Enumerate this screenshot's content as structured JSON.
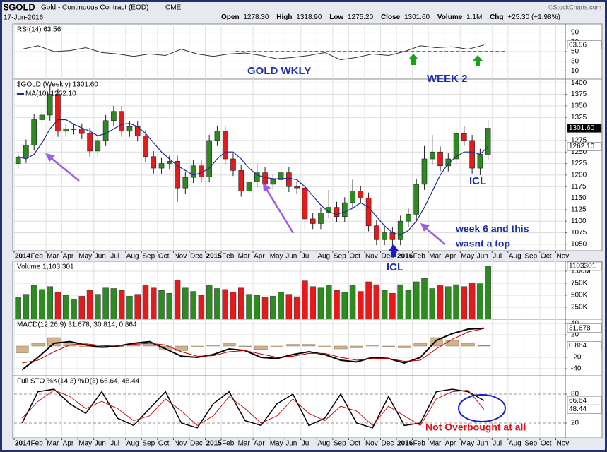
{
  "header": {
    "symbol": "$GOLD",
    "name": "Gold - Continuous Contract (EOD)",
    "exchange": "CME",
    "date": "17-Jun-2016",
    "watermark": "©StockCharts.com",
    "quote": [
      {
        "label": "Open",
        "value": "1278.30"
      },
      {
        "label": "High",
        "value": "1318.90"
      },
      {
        "label": "Low",
        "value": "1275.20"
      },
      {
        "label": "Close",
        "value": "1301.60"
      },
      {
        "label": "Volume",
        "value": "1.1M"
      },
      {
        "label": "Chg",
        "value": "+25.30 (+1.98%)"
      }
    ]
  },
  "annotations": [
    "GOLD WKLY",
    "WEEK 2",
    "ICL",
    "ICL",
    "week 6 and this",
    "wasnt a top",
    "Not Overbought at all"
  ],
  "chart_data": [
    {
      "type": "line",
      "title": "RSI(14) 63.56",
      "xlim": [
        0,
        34.6
      ],
      "ylim": [
        -7.1,
        107.1
      ],
      "yticks": [
        10,
        30,
        50,
        70,
        90
      ],
      "grid": true,
      "x": [
        0.5,
        1.5,
        2.5,
        3.5,
        4.5,
        5.5,
        6.5,
        7.5,
        8.5,
        9.5,
        10.5,
        11.5,
        12.5,
        13.5,
        14.5,
        15.5,
        16.5,
        17.5,
        18.5,
        19.5,
        20.5,
        21.5,
        22.5,
        23.5,
        24.5,
        25.5,
        26.5,
        27.5,
        28.5,
        29.5
      ],
      "series": [
        {
          "color": "#333333",
          "values": [
            55,
            62,
            50,
            52,
            58,
            48,
            45,
            40,
            45,
            42,
            55,
            45,
            40,
            45,
            47,
            42,
            35,
            38,
            42,
            48,
            33,
            38,
            45,
            42,
            50,
            62,
            58,
            60,
            55,
            63.56
          ],
          "last_label": "63.56"
        }
      ],
      "reference": {
        "value": 50,
        "from": 13.9,
        "to": 30.8,
        "color": "#e020e0"
      }
    },
    {
      "type": "candlestick",
      "title": "$GOLD (Weekly) 1301.60",
      "xlim": [
        0,
        34.6
      ],
      "ylim": [
        1036,
        1408
      ],
      "yticks": [
        1050,
        1075,
        1100,
        1125,
        1150,
        1175,
        1200,
        1225,
        1250,
        1275,
        1300,
        1325,
        1350,
        1375,
        1400
      ],
      "grid": true,
      "up_color": "#2e8b22",
      "down_color": "#e8191b",
      "last_label": "1301.60",
      "xticks": [
        {
          "value": 0,
          "label": "2014"
        },
        {
          "value": 1,
          "label": "Feb"
        },
        {
          "value": 2,
          "label": "Mar"
        },
        {
          "value": 3,
          "label": "Apr"
        },
        {
          "value": 4,
          "label": "May"
        },
        {
          "value": 5,
          "label": "Jun"
        },
        {
          "value": 6,
          "label": "Jul"
        },
        {
          "value": 7,
          "label": "Aug"
        },
        {
          "value": 8,
          "label": "Sep"
        },
        {
          "value": 9,
          "label": "Oct"
        },
        {
          "value": 10,
          "label": "Nov"
        },
        {
          "value": 11,
          "label": "Dec"
        },
        {
          "value": 12,
          "label": "2015"
        },
        {
          "value": 13,
          "label": "Feb"
        },
        {
          "value": 14,
          "label": "Mar"
        },
        {
          "value": 15,
          "label": "Apr"
        },
        {
          "value": 16,
          "label": "May"
        },
        {
          "value": 17,
          "label": "Jun"
        },
        {
          "value": 18,
          "label": "Jul"
        },
        {
          "value": 19,
          "label": "Aug"
        },
        {
          "value": 20,
          "label": "Sep"
        },
        {
          "value": 21,
          "label": "Oct"
        },
        {
          "value": 22,
          "label": "Nov"
        },
        {
          "value": 23,
          "label": "Dec"
        },
        {
          "value": 24,
          "label": "2016"
        },
        {
          "value": 25,
          "label": "Feb"
        },
        {
          "value": 26,
          "label": "Mar"
        },
        {
          "value": 27,
          "label": "Apr"
        },
        {
          "value": 28,
          "label": "May"
        },
        {
          "value": 29,
          "label": "Jun"
        },
        {
          "value": 30,
          "label": "Jul"
        },
        {
          "value": 31,
          "label": "Aug"
        },
        {
          "value": 32,
          "label": "Sep"
        },
        {
          "value": 33,
          "label": "Oct"
        },
        {
          "value": 34,
          "label": "Nov"
        }
      ],
      "x": [
        0.25,
        0.75,
        1.25,
        1.75,
        2.25,
        2.75,
        3.25,
        3.75,
        4.25,
        4.75,
        5.25,
        5.75,
        6.25,
        6.75,
        7.25,
        7.75,
        8.25,
        8.75,
        9.25,
        9.75,
        10.25,
        10.75,
        11.25,
        11.75,
        12.25,
        12.75,
        13.25,
        13.75,
        14.25,
        14.75,
        15.25,
        15.75,
        16.25,
        16.75,
        17.25,
        17.75,
        18.25,
        18.75,
        19.25,
        19.75,
        20.25,
        20.75,
        21.25,
        21.75,
        22.25,
        22.75,
        23.25,
        23.75,
        24.25,
        24.75,
        25.25,
        25.75,
        26.25,
        26.75,
        27.25,
        27.75,
        28.25,
        28.75,
        29.25,
        29.75
      ],
      "open": [
        1225,
        1238,
        1265,
        1320,
        1330,
        1375,
        1295,
        1300,
        1300,
        1290,
        1252,
        1275,
        1318,
        1338,
        1295,
        1305,
        1285,
        1240,
        1215,
        1225,
        1230,
        1172,
        1195,
        1220,
        1196,
        1275,
        1295,
        1235,
        1210,
        1165,
        1185,
        1205,
        1180,
        1190,
        1205,
        1175,
        1172,
        1105,
        1095,
        1118,
        1130,
        1110,
        1140,
        1165,
        1150,
        1090,
        1060,
        1075,
        1060,
        1100,
        1115,
        1180,
        1235,
        1250,
        1220,
        1235,
        1290,
        1275,
        1215,
        1245
      ],
      "high": [
        1250,
        1277,
        1332,
        1342,
        1392,
        1387,
        1312,
        1312,
        1312,
        1302,
        1287,
        1330,
        1350,
        1350,
        1317,
        1317,
        1297,
        1252,
        1237,
        1242,
        1242,
        1207,
        1232,
        1232,
        1287,
        1307,
        1307,
        1247,
        1222,
        1197,
        1224,
        1217,
        1202,
        1217,
        1217,
        1187,
        1184,
        1117,
        1130,
        1168,
        1142,
        1152,
        1190,
        1177,
        1162,
        1102,
        1087,
        1087,
        1112,
        1127,
        1192,
        1263,
        1287,
        1262,
        1247,
        1302,
        1306,
        1287,
        1257,
        1318.9
      ],
      "low": [
        1213,
        1226,
        1253,
        1308,
        1318,
        1283,
        1283,
        1288,
        1278,
        1240,
        1240,
        1263,
        1306,
        1283,
        1283,
        1273,
        1228,
        1203,
        1203,
        1213,
        1142,
        1160,
        1183,
        1184,
        1184,
        1263,
        1223,
        1198,
        1153,
        1153,
        1173,
        1168,
        1168,
        1178,
        1163,
        1160,
        1080,
        1083,
        1083,
        1106,
        1098,
        1098,
        1128,
        1138,
        1078,
        1048,
        1048,
        1046,
        1048,
        1088,
        1103,
        1168,
        1223,
        1208,
        1208,
        1223,
        1263,
        1203,
        1200,
        1233
      ],
      "close": [
        1238,
        1265,
        1320,
        1330,
        1375,
        1295,
        1300,
        1300,
        1290,
        1252,
        1275,
        1318,
        1338,
        1295,
        1305,
        1285,
        1240,
        1215,
        1225,
        1230,
        1172,
        1195,
        1220,
        1196,
        1275,
        1295,
        1235,
        1210,
        1165,
        1185,
        1205,
        1180,
        1190,
        1205,
        1175,
        1172,
        1105,
        1095,
        1118,
        1130,
        1110,
        1140,
        1165,
        1150,
        1090,
        1060,
        1075,
        1060,
        1100,
        1115,
        1180,
        1235,
        1250,
        1220,
        1235,
        1290,
        1275,
        1215,
        1245,
        1301.6
      ],
      "ma": {
        "label": "MA(10) 1262.10",
        "color": "#1a2a8a",
        "last_label": "1262.10",
        "values": [
          1240,
          1235,
          1245,
          1270,
          1300,
          1320,
          1320,
          1310,
          1302,
          1295,
          1285,
          1290,
          1300,
          1310,
          1312,
          1305,
          1290,
          1270,
          1250,
          1235,
          1220,
          1210,
          1200,
          1205,
          1215,
          1235,
          1250,
          1250,
          1235,
          1215,
          1200,
          1195,
          1192,
          1192,
          1193,
          1190,
          1175,
          1155,
          1135,
          1120,
          1115,
          1120,
          1128,
          1140,
          1130,
          1110,
          1090,
          1075,
          1070,
          1080,
          1100,
          1130,
          1165,
          1200,
          1225,
          1240,
          1250,
          1250,
          1245,
          1262.1
        ]
      }
    },
    {
      "type": "bar",
      "title": "Volume 1,103,301",
      "xlim": [
        0,
        34.6
      ],
      "ylim": [
        0,
        1206000
      ],
      "grid": true,
      "last_label": "1103301",
      "yticks": [
        {
          "value": 250000,
          "label": "250K"
        },
        {
          "value": 500000,
          "label": "500K"
        },
        {
          "value": 750000,
          "label": "750K"
        },
        {
          "value": 1000000,
          "label": "1.00M"
        }
      ],
      "values": [
        450000,
        520000,
        700000,
        620000,
        680000,
        560000,
        500000,
        420000,
        480000,
        600000,
        520000,
        650000,
        640000,
        600000,
        480000,
        520000,
        700000,
        650000,
        600000,
        540000,
        820000,
        650000,
        580000,
        500000,
        700000,
        640000,
        620000,
        560000,
        650000,
        520000,
        500000,
        460000,
        480000,
        560000,
        520000,
        470000,
        800000,
        680000,
        650000,
        700000,
        600000,
        560000,
        700000,
        580000,
        780000,
        720000,
        600000,
        540000,
        720000,
        600000,
        780000,
        850000,
        640000,
        700000,
        680000,
        720000,
        680000,
        760000,
        740000,
        1103301
      ]
    },
    {
      "type": "line",
      "title": "MACD(12,26,9) 31.678, 30.814, 0.864",
      "xlim": [
        0,
        34.6
      ],
      "ylim": [
        -52.5,
        47.5
      ],
      "yticks": [
        -40,
        -20,
        20,
        40
      ],
      "grid": true,
      "x": [
        0.5,
        1.5,
        2.5,
        3.5,
        4.5,
        5.5,
        6.5,
        7.5,
        8.5,
        9.5,
        10.5,
        11.5,
        12.5,
        13.5,
        14.5,
        15.5,
        16.5,
        17.5,
        18.5,
        19.5,
        20.5,
        21.5,
        22.5,
        23.5,
        24.5,
        25.5,
        26.5,
        27.5,
        28.5,
        29.5
      ],
      "series": [
        {
          "kind": "histogram",
          "color": "#d2b48c",
          "values": [
            -12,
            5,
            15,
            6,
            -2,
            -3,
            0,
            2,
            3,
            -7,
            -8,
            -2,
            2,
            5,
            0,
            -6,
            -2,
            3,
            3,
            -2,
            -5,
            -3,
            2,
            0,
            -3,
            5,
            15,
            10,
            5,
            0.864
          ],
          "last_label": "0.864"
        },
        {
          "kind": "line",
          "color": "#000000",
          "width": 2,
          "values": [
            -42,
            -20,
            5,
            8,
            2,
            -2,
            0,
            5,
            8,
            -5,
            -18,
            -20,
            -15,
            -5,
            -8,
            -20,
            -22,
            -15,
            -10,
            -15,
            -25,
            -28,
            -20,
            -22,
            -30,
            -20,
            10,
            22,
            30,
            31.678
          ],
          "last_label": "31.678"
        },
        {
          "kind": "line",
          "color": "#c00000",
          "width": 1,
          "values": [
            -30,
            -25,
            -10,
            2,
            4,
            1,
            0,
            3,
            5,
            2,
            -10,
            -18,
            -17,
            -10,
            -8,
            -14,
            -20,
            -18,
            -13,
            -13,
            -20,
            -25,
            -22,
            -22,
            -27,
            -25,
            -5,
            12,
            25,
            30.814
          ]
        }
      ]
    },
    {
      "type": "line",
      "title": "Full STO %K(14,3) %D(3) 66.64, 48.44",
      "xlim": [
        0,
        34.6
      ],
      "ylim": [
        -10.7,
        118
      ],
      "yticks": [
        20,
        80
      ],
      "grid": true,
      "xticks": [
        {
          "value": 0,
          "label": "2014"
        },
        {
          "value": 1,
          "label": "Feb"
        },
        {
          "value": 2,
          "label": "Mar"
        },
        {
          "value": 3,
          "label": "Apr"
        },
        {
          "value": 4,
          "label": "May"
        },
        {
          "value": 5,
          "label": "Jun"
        },
        {
          "value": 6,
          "label": "Jul"
        },
        {
          "value": 7,
          "label": "Aug"
        },
        {
          "value": 8,
          "label": "Sep"
        },
        {
          "value": 9,
          "label": "Oct"
        },
        {
          "value": 10,
          "label": "Nov"
        },
        {
          "value": 11,
          "label": "Dec"
        },
        {
          "value": 12,
          "label": "2015"
        },
        {
          "value": 13,
          "label": "Feb"
        },
        {
          "value": 14,
          "label": "Mar"
        },
        {
          "value": 15,
          "label": "Apr"
        },
        {
          "value": 16,
          "label": "May"
        },
        {
          "value": 17,
          "label": "Jun"
        },
        {
          "value": 18,
          "label": "Jul"
        },
        {
          "value": 19,
          "label": "Aug"
        },
        {
          "value": 20,
          "label": "Sep"
        },
        {
          "value": 21,
          "label": "Oct"
        },
        {
          "value": 22,
          "label": "Nov"
        },
        {
          "value": 23,
          "label": "Dec"
        },
        {
          "value": 24,
          "label": "2016"
        },
        {
          "value": 25,
          "label": "Feb"
        },
        {
          "value": 26,
          "label": "Mar"
        },
        {
          "value": 27,
          "label": "Apr"
        },
        {
          "value": 28,
          "label": "May"
        },
        {
          "value": 29,
          "label": "Jun"
        },
        {
          "value": 30,
          "label": "Jul"
        },
        {
          "value": 31,
          "label": "Aug"
        },
        {
          "value": 32,
          "label": "Sep"
        },
        {
          "value": 33,
          "label": "Oct"
        },
        {
          "value": 34,
          "label": "Nov"
        }
      ],
      "x": [
        0.5,
        1.5,
        2.5,
        3.5,
        4.5,
        5.5,
        6.5,
        7.5,
        8.5,
        9.5,
        10.5,
        11.5,
        12.5,
        13.5,
        14.5,
        15.5,
        16.5,
        17.5,
        18.5,
        19.5,
        20.5,
        21.5,
        22.5,
        23.5,
        24.5,
        25.5,
        26.5,
        27.5,
        28.5,
        29.5
      ],
      "series": [
        {
          "kind": "line",
          "color": "#000000",
          "width": 1.5,
          "values": [
            20,
            85,
            90,
            60,
            40,
            85,
            30,
            15,
            50,
            85,
            20,
            10,
            60,
            85,
            25,
            15,
            60,
            80,
            15,
            30,
            80,
            20,
            10,
            75,
            15,
            20,
            85,
            90,
            85,
            66.64
          ],
          "last_label": "66.64"
        },
        {
          "kind": "line",
          "color": "#d01010",
          "width": 1,
          "values": [
            30,
            65,
            88,
            75,
            50,
            65,
            50,
            25,
            35,
            70,
            45,
            15,
            35,
            75,
            50,
            20,
            35,
            70,
            40,
            25,
            55,
            45,
            15,
            55,
            35,
            15,
            70,
            85,
            88,
            48.44
          ],
          "last_label": "48.44"
        }
      ]
    }
  ]
}
